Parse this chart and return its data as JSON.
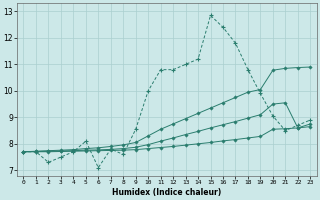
{
  "xlabel": "Humidex (Indice chaleur)",
  "bg_color": "#cce8e8",
  "grid_color": "#aacfcf",
  "line_color": "#2a7d6e",
  "xlim": [
    -0.5,
    23.5
  ],
  "ylim": [
    6.8,
    13.3
  ],
  "yticks": [
    7,
    8,
    9,
    10,
    11,
    12,
    13
  ],
  "xticks": [
    0,
    1,
    2,
    3,
    4,
    5,
    6,
    7,
    8,
    9,
    10,
    11,
    12,
    13,
    14,
    15,
    16,
    17,
    18,
    19,
    20,
    21,
    22,
    23
  ],
  "series_main": {
    "x": [
      0,
      1,
      2,
      3,
      4,
      5,
      6,
      7,
      8,
      9,
      10,
      11,
      12,
      13,
      14,
      15,
      16,
      17,
      18,
      19,
      20,
      21,
      22,
      23
    ],
    "y": [
      7.7,
      7.7,
      7.3,
      7.5,
      7.7,
      8.1,
      7.1,
      7.8,
      7.6,
      8.55,
      10.0,
      10.8,
      10.8,
      11.0,
      11.2,
      12.85,
      12.4,
      11.8,
      10.8,
      9.9,
      9.05,
      8.5,
      8.7,
      8.9
    ]
  },
  "series_lines": [
    {
      "x": [
        0,
        1,
        2,
        3,
        4,
        5,
        6,
        7,
        8,
        9,
        10,
        11,
        12,
        13,
        14,
        15,
        16,
        17,
        18,
        19,
        20,
        21,
        22,
        23
      ],
      "y": [
        7.7,
        7.72,
        7.74,
        7.76,
        7.78,
        7.82,
        7.85,
        7.9,
        7.96,
        8.05,
        8.3,
        8.55,
        8.75,
        8.95,
        9.15,
        9.35,
        9.55,
        9.75,
        9.95,
        10.05,
        10.78,
        10.85,
        10.88,
        10.9
      ]
    },
    {
      "x": [
        0,
        1,
        2,
        3,
        4,
        5,
        6,
        7,
        8,
        9,
        10,
        11,
        12,
        13,
        14,
        15,
        16,
        17,
        18,
        19,
        20,
        21,
        22,
        23
      ],
      "y": [
        7.7,
        7.71,
        7.72,
        7.73,
        7.74,
        7.76,
        7.77,
        7.79,
        7.82,
        7.87,
        7.97,
        8.1,
        8.22,
        8.35,
        8.47,
        8.6,
        8.72,
        8.84,
        8.97,
        9.1,
        9.5,
        9.55,
        8.6,
        8.75
      ]
    },
    {
      "x": [
        0,
        1,
        2,
        3,
        4,
        5,
        6,
        7,
        8,
        9,
        10,
        11,
        12,
        13,
        14,
        15,
        16,
        17,
        18,
        19,
        20,
        21,
        22,
        23
      ],
      "y": [
        7.7,
        7.7,
        7.7,
        7.71,
        7.72,
        7.73,
        7.74,
        7.75,
        7.76,
        7.78,
        7.82,
        7.86,
        7.9,
        7.95,
        8.0,
        8.05,
        8.11,
        8.16,
        8.22,
        8.28,
        8.55,
        8.57,
        8.6,
        8.65
      ]
    }
  ]
}
